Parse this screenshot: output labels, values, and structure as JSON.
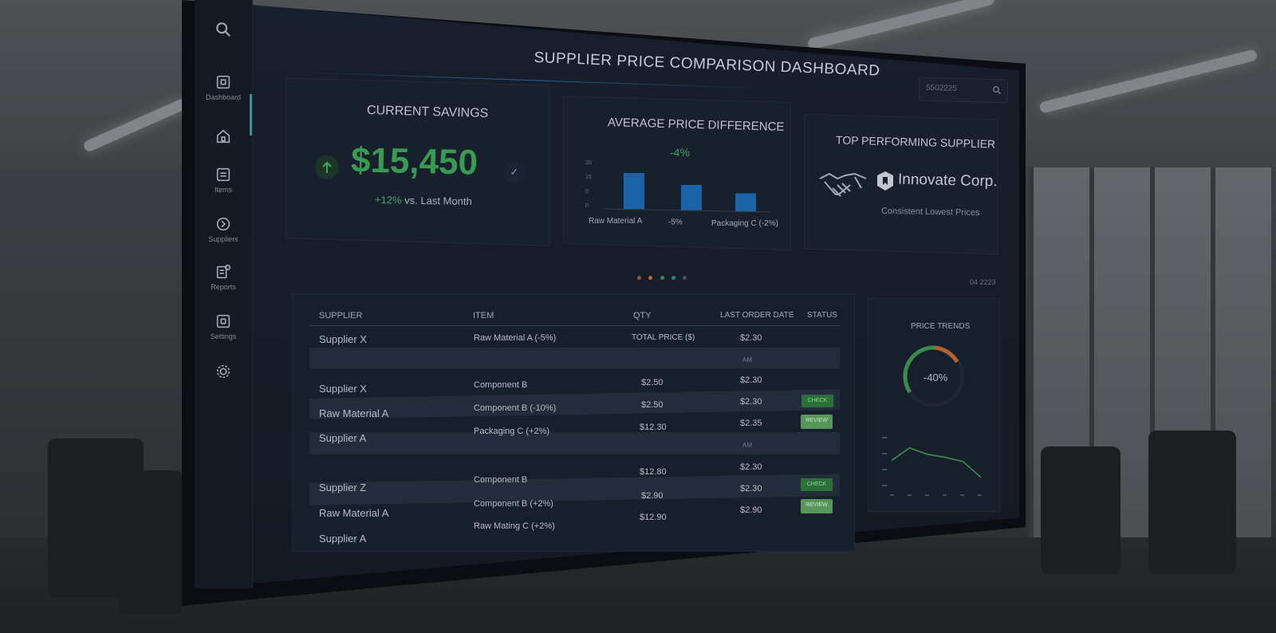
{
  "header": {
    "title": "SUPPLIER PRICE COMPARISON DASHBOARD"
  },
  "search": {
    "value": "5502225"
  },
  "sidebar": {
    "items": [
      {
        "label": ""
      },
      {
        "label": "Dashboard"
      },
      {
        "label": ""
      },
      {
        "label": "Items"
      },
      {
        "label": "Suppliers"
      },
      {
        "label": "Reports"
      },
      {
        "label": "Settings"
      },
      {
        "label": ""
      }
    ]
  },
  "cards": {
    "savings": {
      "title": "CURRENT SAVINGS",
      "amount": "$15,450",
      "change": "+12%",
      "change_suffix": " vs. Last Month"
    },
    "avg_diff": {
      "title": "AVERAGE PRICE DIFFERENCE",
      "value": "-4%"
    },
    "top_supplier": {
      "title": "TOP PERFORMING SUPPLIER",
      "name": "Innovate Corp.",
      "subtitle": "Consistent Lowest Prices"
    }
  },
  "chart_data": [
    {
      "type": "bar",
      "categories": [
        "Raw Material A",
        "-5%",
        "Packaging C (-2%)"
      ],
      "values": [
        15,
        10.5,
        7.5
      ],
      "yticks": [
        "20",
        "15",
        "0",
        "0"
      ],
      "ylim": [
        0,
        20
      ]
    },
    {
      "type": "line",
      "title": "PRICE TRENDS",
      "gauge_value": "-40%",
      "x": [
        0,
        1,
        2,
        3,
        4,
        5
      ],
      "values": [
        52,
        76,
        64,
        58,
        50,
        20
      ],
      "ylim": [
        0,
        100
      ]
    }
  ],
  "pager": {
    "indicator": "04 2223"
  },
  "colors": {
    "accent_green": "#3ea85a",
    "bar_blue": "#1f6bb5",
    "dot_red": "#b0543c",
    "dot_orange": "#c47a32",
    "dot_green": "#3d9b55",
    "dot_teal": "#2a8f8c"
  },
  "table": {
    "columns": [
      "SUPPLIER",
      "ITEM",
      "QTY",
      "LAST ORDER DATE",
      "STATUS"
    ],
    "rows": [
      {
        "supplier": "Supplier X",
        "item": "Raw Material A (-5%)",
        "qty": "TOTAL PRICE ($)",
        "price": "$2.30",
        "status": ""
      },
      {
        "supplier": "",
        "item": "",
        "qty": "",
        "price": "AM",
        "status": ""
      },
      {
        "supplier": "Supplier X",
        "item": "Component B",
        "qty": "$2.50",
        "price": "$2.30",
        "status": ""
      },
      {
        "supplier": "Raw Material A",
        "item": "Component B (-10%)",
        "qty": "$2.50",
        "price": "$2.35",
        "status": "CHECK"
      },
      {
        "supplier": "Supplier A",
        "item": "Packaging C (+2%)",
        "qty": "$12.30",
        "price": "$2.30",
        "status": "REVIEW"
      },
      {
        "supplier": "",
        "item": "",
        "qty": "",
        "price": "AM",
        "status": ""
      },
      {
        "supplier": "Supplier Z",
        "item": "Component B",
        "qty": "$12.80",
        "price": "$2.30",
        "status": ""
      },
      {
        "supplier": "Raw Material A",
        "item": "Component B (+2%)",
        "qty": "$2.90",
        "price": "$2.30",
        "status": "CHECK"
      },
      {
        "supplier": "Supplier A",
        "item": "Raw Mating C (+2%)",
        "qty": "$12.90",
        "price": "$2.90",
        "status": "REVIEW"
      }
    ],
    "extra_prices": [
      "$2.30"
    ]
  }
}
